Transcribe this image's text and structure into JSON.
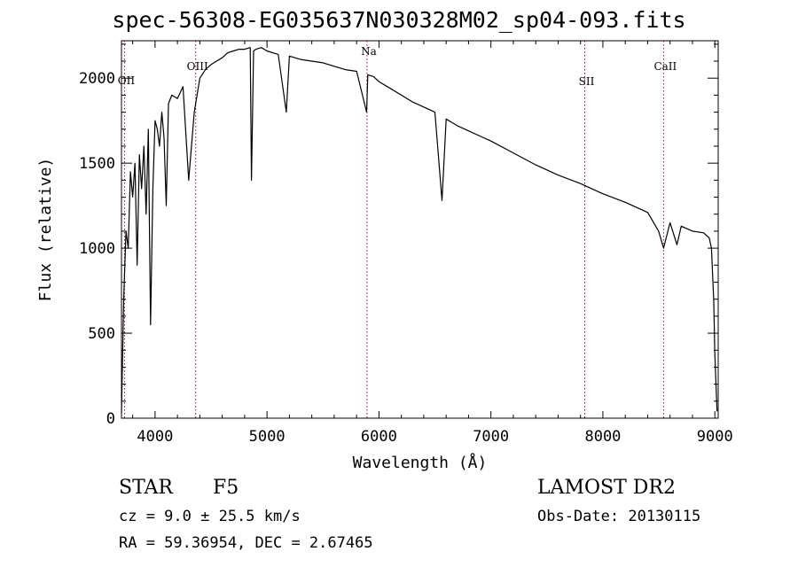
{
  "header": {
    "title": "spec-56308-EG035637N030328M02_sp04-093.fits"
  },
  "info": {
    "object_class": "STAR",
    "subclass": "F5",
    "survey": "LAMOST DR2",
    "cz": "cz = 9.0 ± 25.5 km/s",
    "obs_date": "Obs-Date: 20130115",
    "radec": "RA =  59.36954, DEC =   2.67465"
  },
  "chart_data": {
    "type": "line",
    "title": "spec-56308-EG035637N030328M02_sp04-093.fits",
    "xlabel": "Wavelength (Å)",
    "ylabel": "Flux (relative)",
    "xlim": [
      3700,
      9030
    ],
    "ylim": [
      0,
      2220
    ],
    "x_ticks": [
      4000,
      5000,
      6000,
      7000,
      8000,
      9000
    ],
    "y_ticks": [
      0,
      500,
      1000,
      1500,
      2000
    ],
    "grid": false,
    "line_color": "#000000",
    "marker_color": "#aa0000",
    "lines": [
      {
        "label": "OII",
        "wavelength": 3727
      },
      {
        "label": "OIII",
        "wavelength": 4363
      },
      {
        "label": "Na",
        "wavelength": 5893
      },
      {
        "label": "SII",
        "wavelength": 7838
      },
      {
        "label": "CaII",
        "wavelength": 8542
      }
    ],
    "series": [
      {
        "x": [
          3700,
          3720,
          3740,
          3760,
          3780,
          3800,
          3820,
          3840,
          3860,
          3880,
          3900,
          3920,
          3940,
          3960,
          3980,
          4000,
          4020,
          4040,
          4060,
          4080,
          4100,
          4120,
          4150,
          4200,
          4250,
          4300,
          4350,
          4400,
          4450,
          4500,
          4550,
          4600,
          4650,
          4700,
          4750,
          4800,
          4850,
          4861,
          4880,
          4900,
          4950,
          5000,
          5100,
          5172,
          5200,
          5300,
          5400,
          5500,
          5600,
          5700,
          5800,
          5890,
          5900,
          5950,
          6000,
          6100,
          6200,
          6300,
          6400,
          6500,
          6563,
          6600,
          6700,
          6800,
          6900,
          7000,
          7200,
          7400,
          7600,
          7800,
          8000,
          8200,
          8400,
          8498,
          8542,
          8600,
          8662,
          8700,
          8800,
          8900,
          8950,
          8970,
          8990,
          9000,
          9010,
          9020
        ],
        "y": [
          30,
          700,
          1100,
          1000,
          1450,
          1300,
          1500,
          900,
          1550,
          1350,
          1600,
          1200,
          1700,
          550,
          1350,
          1750,
          1700,
          1600,
          1800,
          1650,
          1250,
          1850,
          1900,
          1880,
          1950,
          1400,
          1800,
          2000,
          2050,
          2080,
          2100,
          2120,
          2150,
          2160,
          2170,
          2170,
          2180,
          1400,
          2160,
          2170,
          2180,
          2160,
          2140,
          1800,
          2130,
          2110,
          2100,
          2090,
          2070,
          2050,
          2040,
          1800,
          2020,
          2010,
          1980,
          1940,
          1900,
          1860,
          1830,
          1800,
          1280,
          1760,
          1720,
          1690,
          1660,
          1630,
          1560,
          1490,
          1430,
          1380,
          1320,
          1270,
          1210,
          1100,
          1000,
          1150,
          1020,
          1130,
          1100,
          1090,
          1060,
          1000,
          700,
          380,
          200,
          40
        ]
      }
    ]
  }
}
